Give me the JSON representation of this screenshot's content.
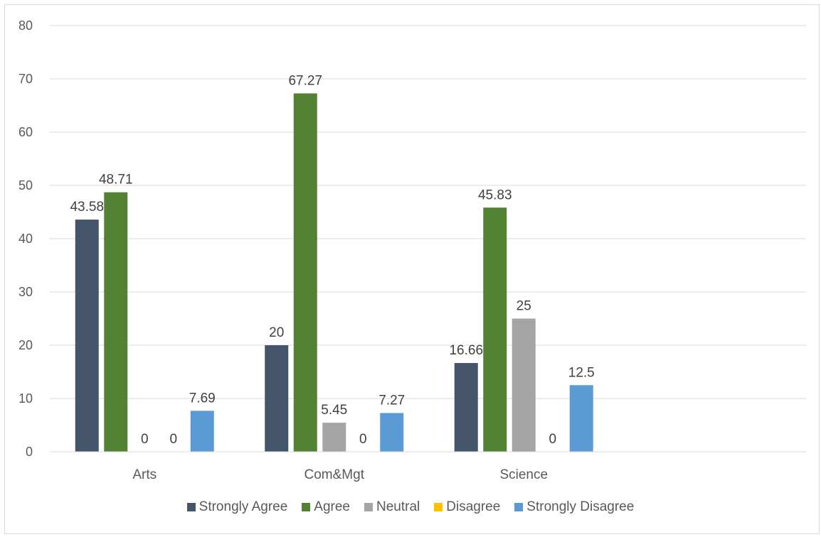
{
  "chart_data": {
    "type": "bar",
    "categories": [
      "Arts",
      "Com&Mgt",
      "Science"
    ],
    "ylim": [
      0,
      80
    ],
    "yticks": [
      0,
      10,
      20,
      30,
      40,
      50,
      60,
      70,
      80
    ],
    "grid": true,
    "legend_position": "bottom",
    "title": "",
    "xlabel": "",
    "ylabel": "",
    "series": [
      {
        "name": "Strongly Agree",
        "color": "#44546a",
        "values": [
          43.58,
          20,
          16.66
        ],
        "labels": [
          "43.58",
          "20",
          "16.66"
        ]
      },
      {
        "name": "Agree",
        "color": "#548235",
        "values": [
          48.71,
          67.27,
          45.83
        ],
        "labels": [
          "48.71",
          "67.27",
          "45.83"
        ]
      },
      {
        "name": "Neutral",
        "color": "#a5a5a5",
        "values": [
          0,
          5.45,
          25
        ],
        "labels": [
          "0",
          "5.45",
          "25"
        ]
      },
      {
        "name": "Disagree",
        "color": "#ffc000",
        "values": [
          0,
          0,
          0
        ],
        "labels": [
          "0",
          "0",
          "0"
        ]
      },
      {
        "name": "Strongly Disagree",
        "color": "#5b9bd5",
        "values": [
          7.69,
          7.27,
          12.5
        ],
        "labels": [
          "7.69",
          "7.27",
          "12.5"
        ]
      }
    ]
  }
}
